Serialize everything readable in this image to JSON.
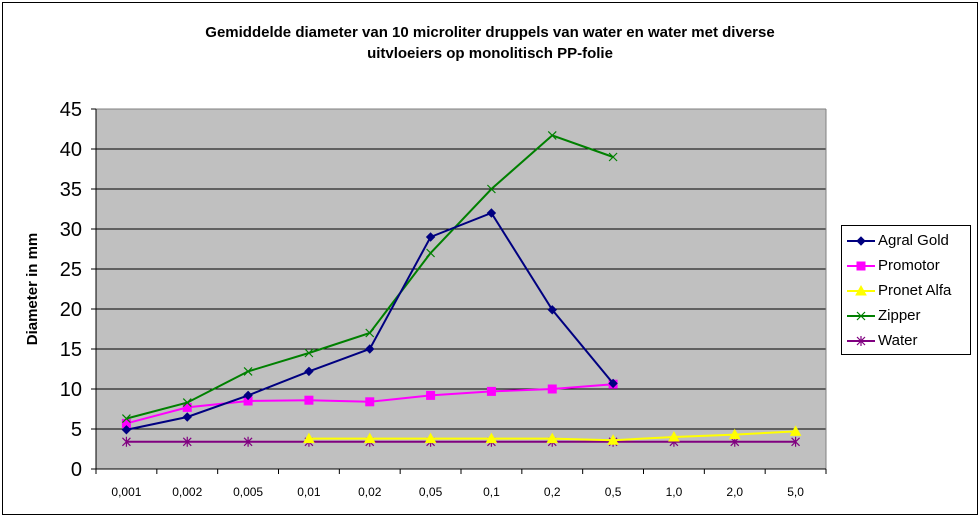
{
  "chart_data": {
    "type": "line",
    "title": "Gemiddelde diameter van 10 microliter druppels van water en water met diverse uitvloeiers op monolitisch PP-folie",
    "title_lines": [
      "Gemiddelde diameter van 10 microliter druppels van water en water met diverse",
      "uitvloeiers op monolitisch PP-folie"
    ],
    "xlabel": "",
    "ylabel": "Diameter in mm",
    "categories": [
      "0,001",
      "0,002",
      "0,005",
      "0,01",
      "0,02",
      "0,05",
      "0,1",
      "0,2",
      "0,5",
      "1,0",
      "2,0",
      "5,0"
    ],
    "yticks": [
      "0",
      "5",
      "10",
      "15",
      "20",
      "25",
      "30",
      "35",
      "40",
      "45"
    ],
    "ylim": [
      0,
      45
    ],
    "grid": true,
    "plot_background": "#c0c0c0",
    "legend_position": "right",
    "series": [
      {
        "name": "Agral Gold",
        "color": "#000080",
        "marker": "diamond",
        "values": [
          4.9,
          6.5,
          9.2,
          12.2,
          15.0,
          29.0,
          32.0,
          19.9,
          10.7,
          null,
          null,
          null
        ]
      },
      {
        "name": "Promotor",
        "color": "#ff00ff",
        "marker": "square",
        "values": [
          5.7,
          7.7,
          8.5,
          8.6,
          8.4,
          9.2,
          9.7,
          10.0,
          10.6,
          null,
          null,
          null
        ]
      },
      {
        "name": "Pronet Alfa",
        "color": "#ffff00",
        "marker": "triangle",
        "values": [
          null,
          null,
          null,
          3.8,
          3.8,
          3.8,
          3.8,
          3.8,
          3.6,
          4.0,
          4.3,
          4.7
        ]
      },
      {
        "name": "Zipper",
        "color": "#008000",
        "marker": "x",
        "values": [
          6.3,
          8.3,
          12.2,
          14.5,
          17.0,
          27.0,
          35.0,
          41.7,
          39.0,
          null,
          null,
          null
        ]
      },
      {
        "name": "Water",
        "color": "#800080",
        "marker": "star",
        "values": [
          3.4,
          3.4,
          3.4,
          3.4,
          3.4,
          3.4,
          3.4,
          3.4,
          3.4,
          3.4,
          3.4,
          3.4
        ]
      }
    ]
  }
}
